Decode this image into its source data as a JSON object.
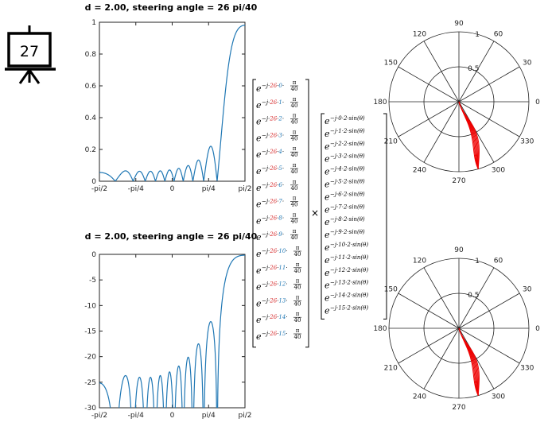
{
  "slide": {
    "number": "27"
  },
  "colors": {
    "curve": "#1f77b4",
    "beam": "#e00000",
    "exponent_index": "#1f77b4",
    "exponent_angle": "#d62728"
  },
  "chart_data": [
    {
      "type": "line",
      "title": "d = 2.00, steering angle  = 26 pi/40",
      "xlabel": "",
      "ylabel": "",
      "xticks": [
        "-pi/2",
        "-pi/4",
        "0",
        "pi/4",
        "pi/2"
      ],
      "yticks": [
        "0",
        "0.2",
        "0.4",
        "0.6",
        "0.8",
        "1"
      ],
      "ylim": [
        0,
        1
      ],
      "xlim": [
        -1.5708,
        1.5708
      ],
      "scale": "linear",
      "grid": false
    },
    {
      "type": "line",
      "title": "d = 2.00, steering angle  = 26 pi/40",
      "xlabel": "",
      "ylabel": "",
      "xticks": [
        "-pi/2",
        "-pi/4",
        "0",
        "pi/4",
        "pi/2"
      ],
      "yticks": [
        "0",
        "-5",
        "-10",
        "-15",
        "-20",
        "-25",
        "-30"
      ],
      "ylim": [
        -30,
        0
      ],
      "xlim": [
        -1.5708,
        1.5708
      ],
      "scale": "dB",
      "grid": false
    },
    {
      "type": "polar",
      "angle_ticks": [
        "0",
        "30",
        "60",
        "90",
        "120",
        "150",
        "180",
        "210",
        "240",
        "270",
        "300",
        "330"
      ],
      "radial_ticks": [
        "0.5",
        "1"
      ],
      "rmax": 1,
      "beam_direction_deg": 286
    },
    {
      "type": "polar",
      "angle_ticks": [
        "0",
        "30",
        "60",
        "90",
        "120",
        "150",
        "180",
        "210",
        "240",
        "270",
        "300",
        "330"
      ],
      "radial_ticks": [
        "0.5",
        "1"
      ],
      "rmax": 1,
      "beam_direction_deg": 286
    }
  ],
  "equation": {
    "steer_base": "e",
    "steer_exp_prefix": "−j·",
    "steer_angle": "26",
    "steer_indices": [
      "0",
      "1",
      "2",
      "3",
      "4",
      "5",
      "6",
      "7",
      "8",
      "9",
      "10",
      "11",
      "12",
      "13",
      "14",
      "15"
    ],
    "fraction_num": "π",
    "fraction_den": "40",
    "times": "×",
    "array_indices": [
      "0",
      "1",
      "2",
      "3",
      "4",
      "5",
      "6",
      "7",
      "8",
      "9",
      "10",
      "11",
      "12",
      "13",
      "14",
      "15"
    ],
    "array_suffix": "·2·sin(θ)"
  }
}
